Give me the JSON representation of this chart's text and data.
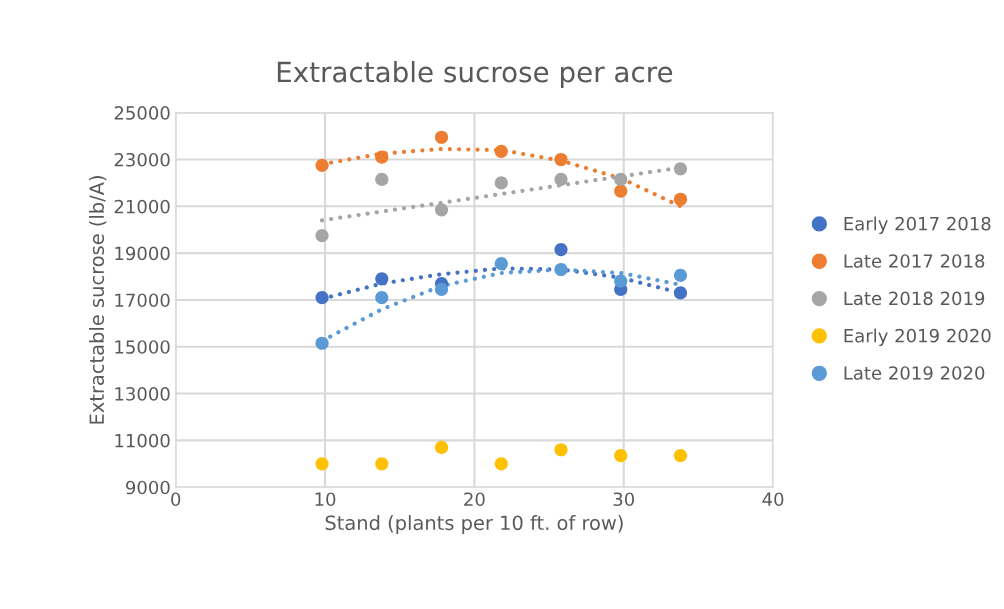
{
  "chart_data": {
    "type": "scatter",
    "title": "Extractable sucrose per acre",
    "xlabel": "Stand (plants per 10 ft. of row)",
    "ylabel": "Extractable sucrose (lb/A)",
    "x": [
      9.8,
      13.8,
      17.8,
      21.8,
      25.8,
      29.8,
      33.8
    ],
    "xlim": [
      0,
      40
    ],
    "xticks": [
      0,
      10,
      20,
      30,
      40
    ],
    "ylim": [
      9000,
      25000
    ],
    "yticks": [
      9000,
      11000,
      13000,
      15000,
      17000,
      19000,
      21000,
      23000,
      25000
    ],
    "grid": true,
    "legend": "right",
    "marker": "circle",
    "series": [
      {
        "name": "Early 2017 2018",
        "color": "#4472c4",
        "values": [
          17100,
          17900,
          17700,
          null,
          19150,
          17450,
          17300
        ]
      },
      {
        "name": "Late 2017 2018",
        "color": "#ed7d31",
        "values": [
          22750,
          23100,
          23950,
          23350,
          23000,
          21650,
          21300
        ]
      },
      {
        "name": "Late 2018 2019",
        "color": "#a5a5a5",
        "values": [
          19750,
          22150,
          20850,
          22000,
          22150,
          22150,
          22600
        ]
      },
      {
        "name": "Early 2019 2020",
        "color": "#ffc000",
        "values": [
          10000,
          10000,
          10700,
          10000,
          10600,
          10350,
          10350
        ]
      },
      {
        "name": "Late 2019 2020",
        "color": "#5b9bd5",
        "values": [
          15150,
          17100,
          17450,
          18550,
          18300,
          17800,
          18050
        ]
      },
      {
        "type": "line",
        "marker": "none",
        "line_style": "dotted",
        "color": "#4472c4",
        "x": [
          9.8,
          13.8,
          17.8,
          21.8,
          25.8,
          29.8,
          33.8
        ],
        "values": [
          17050,
          17700,
          18100,
          18350,
          18300,
          17950,
          17300
        ]
      },
      {
        "type": "line",
        "marker": "none",
        "line_style": "dotted",
        "color": "#ed7d31",
        "x": [
          9.8,
          13.8,
          17.8,
          21.8,
          25.8,
          29.8,
          33.8
        ],
        "values": [
          22800,
          23250,
          23450,
          23400,
          22950,
          22200,
          21000
        ]
      },
      {
        "type": "line",
        "marker": "none",
        "line_style": "dotted",
        "color": "#a5a5a5",
        "x": [
          9.8,
          33.8
        ],
        "values": [
          20400,
          22650
        ]
      },
      {
        "type": "line",
        "marker": "none",
        "line_style": "dotted",
        "color": "#5b9bd5",
        "x": [
          9.8,
          13.8,
          17.8,
          21.8,
          25.8,
          29.8,
          33.8
        ],
        "values": [
          15250,
          16600,
          17600,
          18150,
          18300,
          18150,
          17650
        ]
      }
    ]
  }
}
